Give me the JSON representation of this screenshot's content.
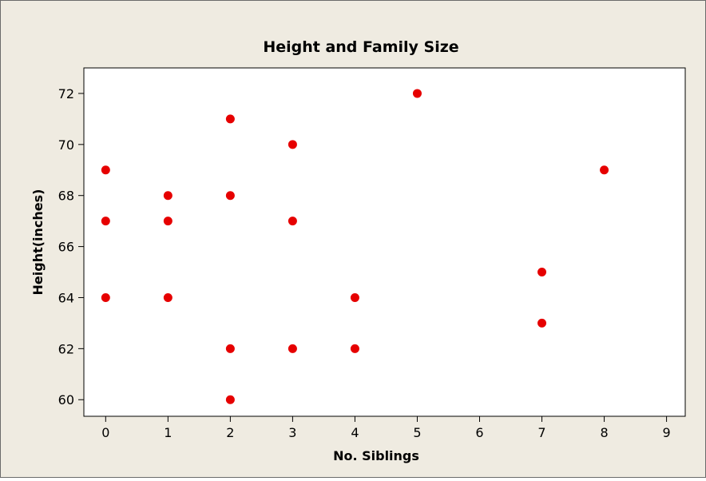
{
  "chart_data": {
    "type": "scatter",
    "title": "Height and Family Size",
    "xlabel": "No. Siblings",
    "ylabel": "Height(inches)",
    "xlim": [
      -0.35,
      9.3
    ],
    "ylim": [
      59.35,
      73.0
    ],
    "x_ticks": [
      "0",
      "1",
      "2",
      "3",
      "4",
      "5",
      "6",
      "7",
      "8",
      "9"
    ],
    "y_ticks": [
      "60",
      "62",
      "64",
      "66",
      "68",
      "70",
      "72"
    ],
    "grid": false,
    "legend": "none",
    "marker_color": "#e60000",
    "points": [
      {
        "x": 0,
        "y": 69
      },
      {
        "x": 0,
        "y": 67
      },
      {
        "x": 0,
        "y": 64
      },
      {
        "x": 1,
        "y": 68
      },
      {
        "x": 1,
        "y": 67
      },
      {
        "x": 1,
        "y": 64
      },
      {
        "x": 2,
        "y": 71
      },
      {
        "x": 2,
        "y": 68
      },
      {
        "x": 2,
        "y": 62
      },
      {
        "x": 2,
        "y": 60
      },
      {
        "x": 3,
        "y": 70
      },
      {
        "x": 3,
        "y": 67
      },
      {
        "x": 3,
        "y": 62
      },
      {
        "x": 4,
        "y": 64
      },
      {
        "x": 4,
        "y": 62
      },
      {
        "x": 5,
        "y": 72
      },
      {
        "x": 7,
        "y": 65
      },
      {
        "x": 7,
        "y": 63
      },
      {
        "x": 8,
        "y": 69
      }
    ]
  }
}
